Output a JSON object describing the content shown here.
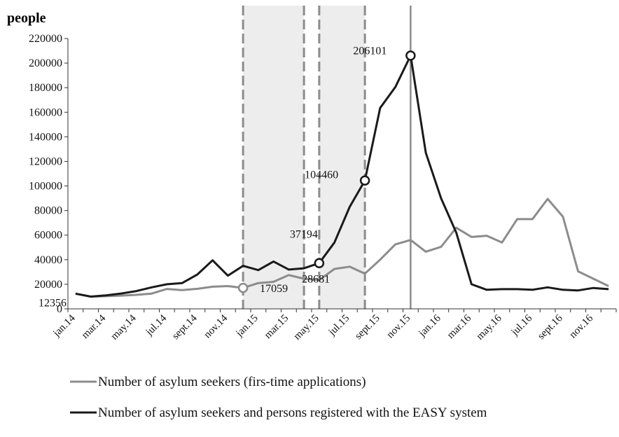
{
  "chart_data": {
    "type": "line",
    "ylabel": "people",
    "ylim": [
      0,
      220000
    ],
    "yticks": [
      0,
      20000,
      40000,
      60000,
      80000,
      100000,
      120000,
      140000,
      160000,
      180000,
      200000,
      220000
    ],
    "xtick_labels": [
      "jan.14",
      "mar.14",
      "may.14",
      "jul.14",
      "sept.14",
      "nov.14",
      "jan.15",
      "mar.15",
      "may.15",
      "jul.15",
      "sept.15",
      "nov.15",
      "jan.16",
      "mar.16",
      "may.16",
      "jul.16",
      "sept.16",
      "nov.16"
    ],
    "x": [
      "jan.14",
      "feb.14",
      "mar.14",
      "apr.14",
      "may.14",
      "jun.14",
      "jul.14",
      "aug.14",
      "sept.14",
      "oct.14",
      "nov.14",
      "dec.14",
      "jan.15",
      "feb.15",
      "mar.15",
      "apr.15",
      "may.15",
      "jun.15",
      "jul.15",
      "aug.15",
      "sept.15",
      "oct.15",
      "nov.15",
      "dec.15",
      "jan.16",
      "feb.16",
      "mar.16",
      "apr.16",
      "may.16",
      "jun.16",
      "jul.16",
      "aug.16",
      "sept.16",
      "oct.16",
      "nov.16",
      "dec.16"
    ],
    "series": [
      {
        "name": "Number of asylum seekers (firs-time applications)",
        "color": "#8c8c8c",
        "values": [
          12356,
          9900,
          10300,
          10800,
          11400,
          12400,
          16200,
          15200,
          16300,
          18000,
          18500,
          17059,
          21000,
          22000,
          27500,
          24500,
          23500,
          32500,
          34300,
          28681,
          40000,
          52500,
          56000,
          46500,
          50500,
          66000,
          58500,
          59500,
          54000,
          73000,
          73000,
          89500,
          75000,
          30500,
          24500,
          18500
        ]
      },
      {
        "name": "Number of asylum seekers and persons registered with the EASY system",
        "color": "#1a1a1a",
        "values": [
          12356,
          10000,
          11000,
          12500,
          14500,
          17500,
          20000,
          21000,
          28000,
          39500,
          27000,
          35000,
          31500,
          38500,
          32000,
          33000,
          37194,
          54000,
          83000,
          104460,
          163500,
          180500,
          206101,
          127000,
          90000,
          62000,
          20000,
          15500,
          16000,
          16000,
          15500,
          17500,
          15500,
          15000,
          17000,
          16000
        ]
      }
    ],
    "annotations": [
      {
        "text": "12356",
        "x": "jan.14",
        "y": 12356
      },
      {
        "text": "17059",
        "x": "dec.14",
        "y": 17059
      },
      {
        "text": "28681",
        "x": "aug.15",
        "y": 28681
      },
      {
        "text": "37194",
        "x": "may.15",
        "y": 37194
      },
      {
        "text": "104460",
        "x": "aug.15",
        "y": 104460
      },
      {
        "text": "206101",
        "x": "nov.15",
        "y": 206101
      }
    ],
    "shaded_periods": [
      [
        "dec.14",
        "apr.15"
      ],
      [
        "may.15",
        "aug.15"
      ]
    ],
    "vertical_line": "nov.15",
    "grid": false,
    "legend_placement": "bottom"
  }
}
